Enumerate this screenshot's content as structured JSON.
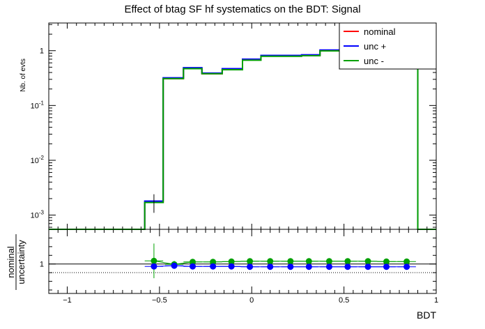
{
  "chart_data": [
    {
      "type": "line",
      "title": "Effect of btag SF hf systematics on the BDT: Signal",
      "ylabel": "Nb. of evts",
      "xlabel": "",
      "yscale": "log",
      "ylim": [
        0.00055,
        3.2
      ],
      "xlim": [
        -1.1,
        1.0
      ],
      "x_ticks": [
        -1,
        -0.5,
        0,
        0.5,
        1
      ],
      "y_ticks": [
        {
          "value": 0.001,
          "base": "10",
          "exp": "-3"
        },
        {
          "value": 0.01,
          "base": "10",
          "exp": "-2"
        },
        {
          "value": 0.1,
          "base": "10",
          "exp": "-1"
        },
        {
          "value": 1,
          "base": "1",
          "exp": ""
        }
      ],
      "bin_edges": [
        -1.1,
        -0.58,
        -0.48,
        -0.37,
        -0.27,
        -0.16,
        -0.05,
        0.05,
        0.16,
        0.27,
        0.37,
        0.48,
        0.58,
        0.69,
        0.79,
        0.9,
        1.0
      ],
      "series": [
        {
          "name": "nominal",
          "color": "#ff0000",
          "values": [
            0,
            0.0017,
            0.31,
            0.47,
            0.38,
            0.45,
            0.68,
            0.8,
            0.8,
            0.82,
            1.0,
            1.15,
            1.35,
            1.6,
            2.0,
            0
          ]
        },
        {
          "name": "unc +",
          "color": "#0000ff",
          "values": [
            0,
            0.0018,
            0.32,
            0.49,
            0.39,
            0.47,
            0.7,
            0.82,
            0.82,
            0.84,
            1.03,
            1.18,
            1.38,
            1.65,
            2.05,
            0
          ]
        },
        {
          "name": "unc -",
          "color": "#00a000",
          "values": [
            0,
            0.0017,
            0.31,
            0.47,
            0.38,
            0.45,
            0.67,
            0.79,
            0.79,
            0.81,
            0.99,
            1.14,
            1.33,
            1.58,
            1.95,
            0
          ]
        }
      ],
      "error_bar": {
        "x": -0.53,
        "low": 0.0011,
        "high": 0.0024
      },
      "legend": {
        "position": "top-right",
        "entries": [
          "nominal",
          "unc +",
          "unc -"
        ]
      },
      "grid": false
    },
    {
      "type": "scatter",
      "ylabel_top": "nominal",
      "ylabel_bottom": "uncertainty",
      "xlabel": "BDT",
      "xlim": [
        -1.1,
        1.0
      ],
      "ylim": [
        0.83,
        1.2
      ],
      "x_ticks": [
        -1,
        -0.5,
        0,
        0.5,
        1
      ],
      "y_ticks": [
        1
      ],
      "reference_line": 1,
      "dotted_line": 0.95,
      "series": [
        {
          "name": "",
          "color": "#00a000",
          "x": [
            -0.53,
            -0.42,
            -0.32,
            -0.21,
            -0.11,
            -0.01,
            0.1,
            0.21,
            0.31,
            0.42,
            0.52,
            0.63,
            0.73,
            0.84
          ],
          "y": [
            1.018,
            0.998,
            1.012,
            1.012,
            1.014,
            1.016,
            1.016,
            1.016,
            1.016,
            1.016,
            1.016,
            1.016,
            1.014,
            1.014
          ],
          "err": [
            0.1,
            0.02,
            0.015,
            0.012,
            0.01,
            0.008,
            0.006,
            0.006,
            0.006,
            0.006,
            0.005,
            0.005,
            0.005,
            0.005
          ]
        },
        {
          "name": "",
          "color": "#0000ff",
          "x": [
            -0.53,
            -0.42,
            -0.32,
            -0.21,
            -0.11,
            -0.01,
            0.1,
            0.21,
            0.31,
            0.42,
            0.52,
            0.63,
            0.73,
            0.84
          ],
          "y": [
            0.986,
            0.99,
            0.986,
            0.986,
            0.986,
            0.984,
            0.984,
            0.984,
            0.984,
            0.984,
            0.984,
            0.984,
            0.984,
            0.984
          ],
          "err": [
            0.008,
            0.015,
            0.012,
            0.01,
            0.008,
            0.006,
            0.006,
            0.006,
            0.006,
            0.006,
            0.005,
            0.005,
            0.005,
            0.005
          ]
        }
      ]
    }
  ]
}
